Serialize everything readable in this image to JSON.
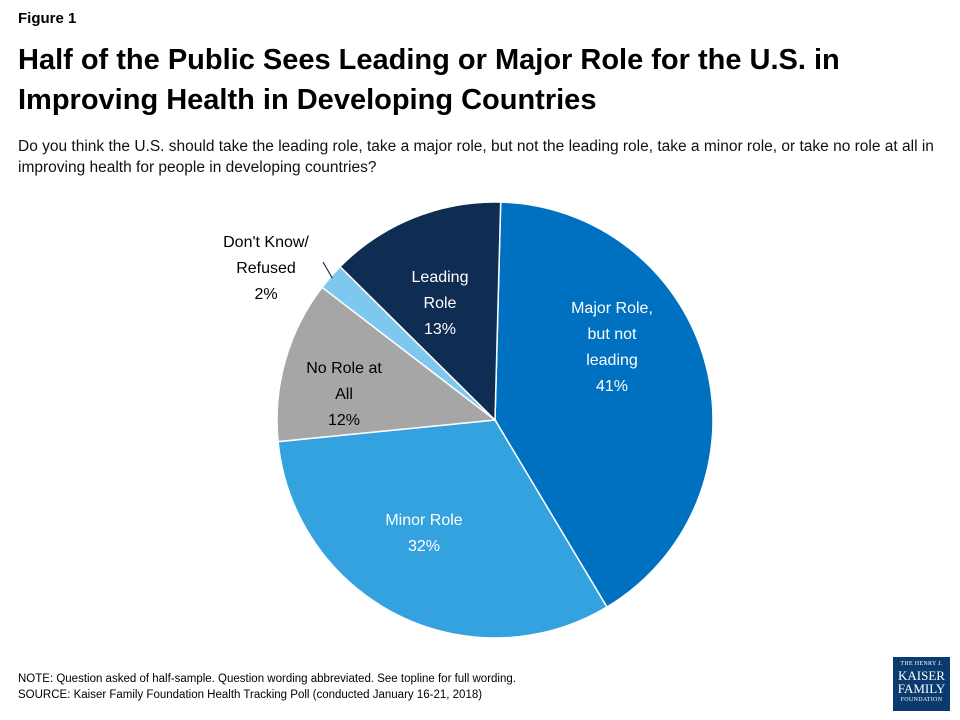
{
  "figure_label": "Figure 1",
  "title": "Half of the Public Sees Leading or Major Role for the U.S. in Improving Health in Developing Countries",
  "subtitle": "Do you think the U.S. should take the leading role, take a major role, but not the leading role, take a minor role, or take no role at all in improving health for people in developing countries?",
  "chart_data": {
    "type": "pie",
    "slices": [
      {
        "label_lines": [
          "Major Role,",
          "but not",
          "leading"
        ],
        "value_label": "41%",
        "value": 41,
        "color": "#0070c0",
        "text_color": "#ffffff"
      },
      {
        "label_lines": [
          "Minor Role"
        ],
        "value_label": "32%",
        "value": 32,
        "color": "#35a2e0",
        "text_color": "#ffffff"
      },
      {
        "label_lines": [
          "No Role at",
          "All"
        ],
        "value_label": "12%",
        "value": 12,
        "color": "#a6a6a6",
        "text_color": "#000000"
      },
      {
        "label_lines": [
          "Don't Know/",
          "Refused"
        ],
        "value_label": "2%",
        "value": 2,
        "color": "#7ec8f0",
        "text_color": "#000000"
      },
      {
        "label_lines": [
          "Leading",
          "Role"
        ],
        "value_label": "13%",
        "value": 13,
        "color": "#0f2d52",
        "text_color": "#ffffff"
      }
    ]
  },
  "notes": {
    "note": "NOTE: Question asked of half-sample. Question wording abbreviated. See topline for full wording.",
    "source": "SOURCE: Kaiser Family Foundation Health Tracking Poll (conducted January 16-21, 2018)"
  },
  "logo": {
    "line1": "THE HENRY J.",
    "line2": "KAISER",
    "line3": "FAMILY",
    "line4": "FOUNDATION"
  }
}
